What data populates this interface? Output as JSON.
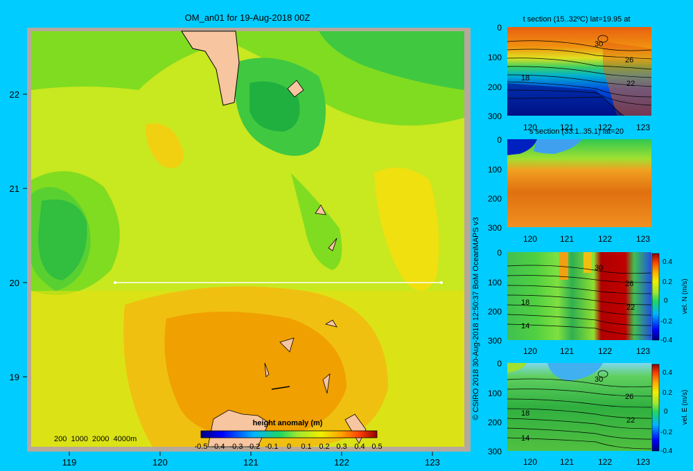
{
  "map": {
    "title": "OM_an01 for 19-Aug-2018 00Z",
    "lat_ticks": [
      "22",
      "21",
      "20",
      "19"
    ],
    "lon_ticks": [
      "119",
      "120",
      "121",
      "122",
      "123"
    ],
    "depth_legend": "200  1000  2000  4000m",
    "colorbar_title": "height anomaly  (m)",
    "colorbar_ticks": [
      "-0.5",
      "-0.4",
      "-0.3",
      "-0.2",
      "-0.1",
      "0",
      "0.1",
      "0.2",
      "0.3",
      "0.4",
      "0.5"
    ],
    "section_line_lat": "20"
  },
  "credit": "© CSIRO 2018   30-Aug-2018 12:50:37 BoM OceanMAPS v3",
  "panels": [
    {
      "title": "t section (15..32ºC) lat=19.95 at",
      "contour_labels": [
        "30",
        "26",
        "18",
        "22"
      ],
      "colorbar": null
    },
    {
      "title": "s section (33.1..35.1) lat=20",
      "contour_labels": [],
      "colorbar": null
    },
    {
      "title": "",
      "contour_labels": [
        "30",
        "26",
        "18",
        "22",
        "14"
      ],
      "colorbar": {
        "label": "vel. N (m/s)",
        "ticks": [
          "0.4",
          "0.2",
          "0",
          "-0.2",
          "-0.4"
        ]
      }
    },
    {
      "title": "",
      "contour_labels": [
        "30",
        "26",
        "18",
        "22",
        "14"
      ],
      "colorbar": {
        "label": "vel. E (m/s)",
        "ticks": [
          "0.4",
          "0.2",
          "0",
          "-0.2",
          "-0.4"
        ]
      }
    }
  ],
  "section_axes": {
    "depth_ticks": [
      "0",
      "100",
      "200",
      "300"
    ],
    "lon_ticks": [
      "120",
      "121",
      "122",
      "123"
    ]
  },
  "colors": {
    "background": "#00ccff",
    "land": "#f7c59f",
    "shelf": "#b8a89a"
  }
}
